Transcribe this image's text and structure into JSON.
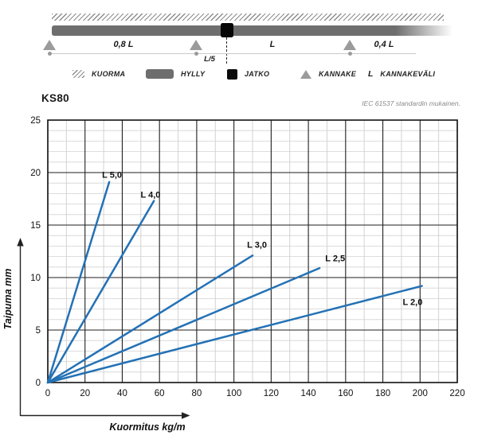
{
  "schematic": {
    "dims": {
      "span_left": "0,8 L",
      "joint_offset": "L/5",
      "span_mid": "L",
      "overhang": "0,4 L"
    },
    "legend": [
      {
        "icon": "load-hatch",
        "label": "KUORMA"
      },
      {
        "icon": "shelf-bar",
        "label": "HYLLY"
      },
      {
        "icon": "joint-square",
        "label": "JATKO"
      },
      {
        "icon": "bracket-triangle",
        "label": "KANNAKE"
      },
      {
        "icon": "letter-L",
        "symbol": "L",
        "label": "KANNAKEVÄLI"
      }
    ]
  },
  "colors": {
    "series_blue": "#2371b5",
    "shelf_gray": "#6e6e6e",
    "bracket_gray": "#9b9b9b",
    "note_gray": "#8a8a8a"
  },
  "chart_data": {
    "type": "line",
    "title": "KS80",
    "note": "IEC 61537 standardin mukainen.",
    "xlabel": "Kuormitus kg/m",
    "ylabel": "Taipuma mm",
    "xlim": [
      0,
      220
    ],
    "ylim": [
      0,
      25
    ],
    "x_ticks": [
      0,
      20,
      40,
      60,
      80,
      100,
      120,
      140,
      160,
      180,
      200,
      220
    ],
    "y_ticks": [
      0,
      5,
      10,
      15,
      20,
      25
    ],
    "x_minor_step": 10,
    "y_minor_step": 1,
    "grid": true,
    "legend_position": "inline-labels",
    "line_color": "#2371b5",
    "series": [
      {
        "name": "L 5,0",
        "x": [
          0,
          33
        ],
        "y": [
          0,
          19.1
        ],
        "label_at": [
          34.5,
          19.5
        ]
      },
      {
        "name": "L 4,0",
        "x": [
          0,
          57
        ],
        "y": [
          0,
          17.3
        ],
        "label_at": [
          55.2,
          17.6
        ]
      },
      {
        "name": "L 3,0",
        "x": [
          0,
          110
        ],
        "y": [
          0,
          12.1
        ],
        "label_at": [
          112.4,
          12.85
        ]
      },
      {
        "name": "L 2,5",
        "x": [
          0,
          146
        ],
        "y": [
          0,
          10.9
        ],
        "label_at": [
          154.4,
          11.55
        ]
      },
      {
        "name": "L 2,0",
        "x": [
          0,
          201
        ],
        "y": [
          0,
          9.2
        ],
        "label_at": [
          196.0,
          7.4
        ]
      }
    ]
  }
}
